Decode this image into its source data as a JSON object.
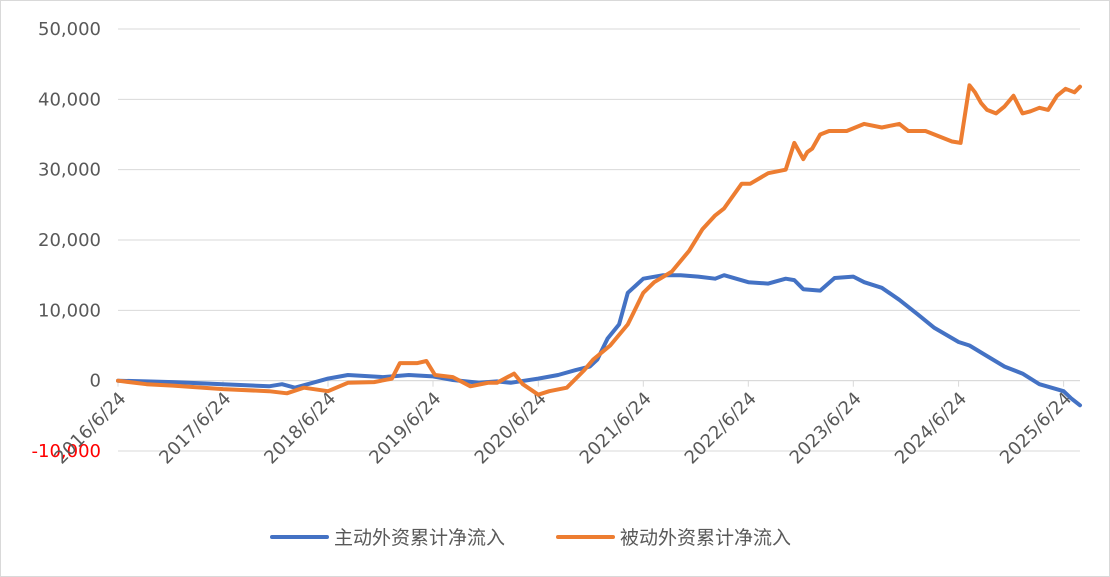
{
  "chart_data": {
    "type": "line",
    "title": "",
    "xlabel": "",
    "ylabel": "",
    "x_tick_labels": [
      "2016/6/24",
      "2017/6/24",
      "2018/6/24",
      "2019/6/24",
      "2020/6/24",
      "2021/6/24",
      "2022/6/24",
      "2023/6/24",
      "2024/6/24",
      "2025/6/24"
    ],
    "y_tick_labels": [
      "50,000",
      "40,000",
      "30,000",
      "20,000",
      "10,000",
      "0",
      "-10,000"
    ],
    "y_tick_values": [
      50000,
      40000,
      30000,
      20000,
      10000,
      0,
      -10000
    ],
    "ylim": [
      -10000,
      50000
    ],
    "xlim": [
      "2016/6/24",
      "2025/8/20"
    ],
    "grid": "horizontal",
    "legend_position": "bottom",
    "negative_tick_color": "#ff0000",
    "series": [
      {
        "name": "主动外资累计净流入",
        "color": "#4472c4",
        "x": [
          "2016/6/24",
          "2016/10/1",
          "2017/1/1",
          "2017/6/24",
          "2017/12/1",
          "2018/1/15",
          "2018/3/1",
          "2018/6/24",
          "2018/9/1",
          "2019/1/1",
          "2019/4/1",
          "2019/6/24",
          "2019/9/1",
          "2019/12/1",
          "2020/2/1",
          "2020/3/20",
          "2020/6/24",
          "2020/9/1",
          "2020/11/1",
          "2020/12/20",
          "2021/1/15",
          "2021/2/20",
          "2021/4/1",
          "2021/5/1",
          "2021/6/24",
          "2021/9/1",
          "2021/11/1",
          "2022/1/1",
          "2022/3/1",
          "2022/4/1",
          "2022/6/24",
          "2022/9/1",
          "2022/11/1",
          "2022/12/1",
          "2023/1/1",
          "2023/3/1",
          "2023/4/20",
          "2023/6/24",
          "2023/8/1",
          "2023/10/1",
          "2023/12/1",
          "2024/2/1",
          "2024/4/1",
          "2024/6/24",
          "2024/8/1",
          "2024/10/1",
          "2024/12/1",
          "2025/2/1",
          "2025/4/1",
          "2025/6/24",
          "2025/7/20",
          "2025/8/20"
        ],
        "values": [
          0,
          -100,
          -200,
          -500,
          -800,
          -500,
          -1000,
          300,
          800,
          500,
          800,
          600,
          100,
          -300,
          -100,
          -300,
          300,
          800,
          1500,
          2000,
          3000,
          6000,
          8000,
          12500,
          14500,
          15000,
          15000,
          14800,
          14500,
          15000,
          14000,
          13800,
          14500,
          14300,
          13000,
          12800,
          14600,
          14800,
          14000,
          13200,
          11500,
          9500,
          7500,
          5500,
          5000,
          3500,
          2000,
          1000,
          -500,
          -1500,
          -2500,
          -3500
        ]
      },
      {
        "name": "被动外资累计净流入",
        "color": "#ed7d31",
        "x": [
          "2016/6/24",
          "2016/10/1",
          "2017/1/1",
          "2017/6/24",
          "2017/12/1",
          "2018/2/1",
          "2018/4/1",
          "2018/6/24",
          "2018/9/1",
          "2018/12/1",
          "2019/2/1",
          "2019/3/1",
          "2019/5/1",
          "2019/6/1",
          "2019/7/1",
          "2019/9/1",
          "2019/11/1",
          "2020/1/1",
          "2020/2/1",
          "2020/4/1",
          "2020/5/1",
          "2020/6/24",
          "2020/8/1",
          "2020/10/1",
          "2020/12/1",
          "2021/1/1",
          "2021/3/1",
          "2021/5/1",
          "2021/6/24",
          "2021/8/1",
          "2021/10/1",
          "2021/12/1",
          "2022/1/15",
          "2022/3/1",
          "2022/4/1",
          "2022/6/1",
          "2022/7/1",
          "2022/9/1",
          "2022/11/1",
          "2022/12/1",
          "2023/1/1",
          "2023/1/15",
          "2023/2/1",
          "2023/3/1",
          "2023/4/1",
          "2023/6/1",
          "2023/8/1",
          "2023/10/1",
          "2023/12/1",
          "2024/1/1",
          "2024/3/1",
          "2024/6/1",
          "2024/7/1",
          "2024/8/1",
          "2024/8/20",
          "2024/9/10",
          "2024/10/1",
          "2024/11/1",
          "2024/12/1",
          "2025/1/1",
          "2025/2/1",
          "2025/3/1",
          "2025/4/1",
          "2025/5/1",
          "2025/6/1",
          "2025/7/1",
          "2025/8/1",
          "2025/8/20"
        ],
        "values": [
          0,
          -500,
          -700,
          -1200,
          -1500,
          -1800,
          -1000,
          -1500,
          -300,
          -200,
          300,
          2500,
          2500,
          2800,
          800,
          500,
          -800,
          -300,
          -300,
          1000,
          -500,
          -2000,
          -1500,
          -1000,
          1500,
          3000,
          5000,
          8000,
          12500,
          14000,
          15500,
          18500,
          21500,
          23500,
          24500,
          28000,
          28000,
          29500,
          30000,
          33800,
          31500,
          32500,
          33000,
          35000,
          35500,
          35500,
          36500,
          36000,
          36500,
          35500,
          35500,
          34000,
          33800,
          42000,
          41000,
          39500,
          38500,
          38000,
          39000,
          40500,
          38000,
          38300,
          38800,
          38500,
          40500,
          41500,
          41000,
          41800
        ]
      }
    ]
  }
}
